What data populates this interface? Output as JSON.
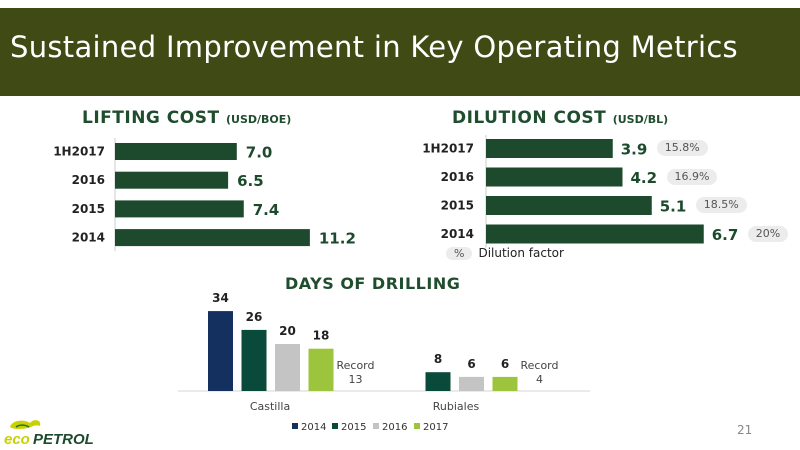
{
  "title": "Sustained Improvement in Key Operating Metrics",
  "page_number": "21",
  "logo_text": "ecopetrol",
  "colors": {
    "banner": "#3f4a14",
    "bar_dark": "#1d4a2c",
    "navy": "#13305e",
    "teal": "#0a4a3a",
    "grey": "#c4c4c4",
    "lime": "#9dc43d"
  },
  "chart_data": [
    {
      "type": "bar",
      "orientation": "horizontal",
      "title": "LIFTING COST",
      "unit": "(USD/BOE)",
      "categories": [
        "1H2017",
        "2016",
        "2015",
        "2014"
      ],
      "values": [
        7.0,
        6.5,
        7.4,
        11.2
      ],
      "value_labels": [
        "7.0",
        "6.5",
        "7.4",
        "11.2"
      ]
    },
    {
      "type": "bar",
      "orientation": "horizontal",
      "title": "DILUTION COST",
      "unit": "(USD/BL)",
      "categories": [
        "1H2017",
        "2016",
        "2015",
        "2014"
      ],
      "values": [
        3.9,
        4.2,
        5.1,
        6.7
      ],
      "value_labels": [
        "3.9",
        "4.2",
        "5.1",
        "6.7"
      ],
      "dilution_factor": [
        "15.8%",
        "16.9%",
        "18.5%",
        "20%"
      ],
      "note_symbol": "%",
      "note_label": "Dilution factor"
    },
    {
      "type": "bar",
      "title": "DAYS OF DRILLING",
      "categories": [
        "Castilla",
        "Rubiales"
      ],
      "series": [
        {
          "name": "2014",
          "values": [
            34,
            null
          ]
        },
        {
          "name": "2015",
          "values": [
            26,
            8
          ]
        },
        {
          "name": "2016",
          "values": [
            20,
            6
          ]
        },
        {
          "name": "2017",
          "values": [
            18,
            6
          ]
        }
      ],
      "annotations": [
        {
          "category": "Castilla",
          "line1": "Record",
          "line2": "13"
        },
        {
          "category": "Rubiales",
          "line1": "Record",
          "line2": "4"
        }
      ],
      "legend": [
        "2014",
        "2015",
        "2016",
        "2017"
      ],
      "legend_placement": "bottom"
    }
  ]
}
